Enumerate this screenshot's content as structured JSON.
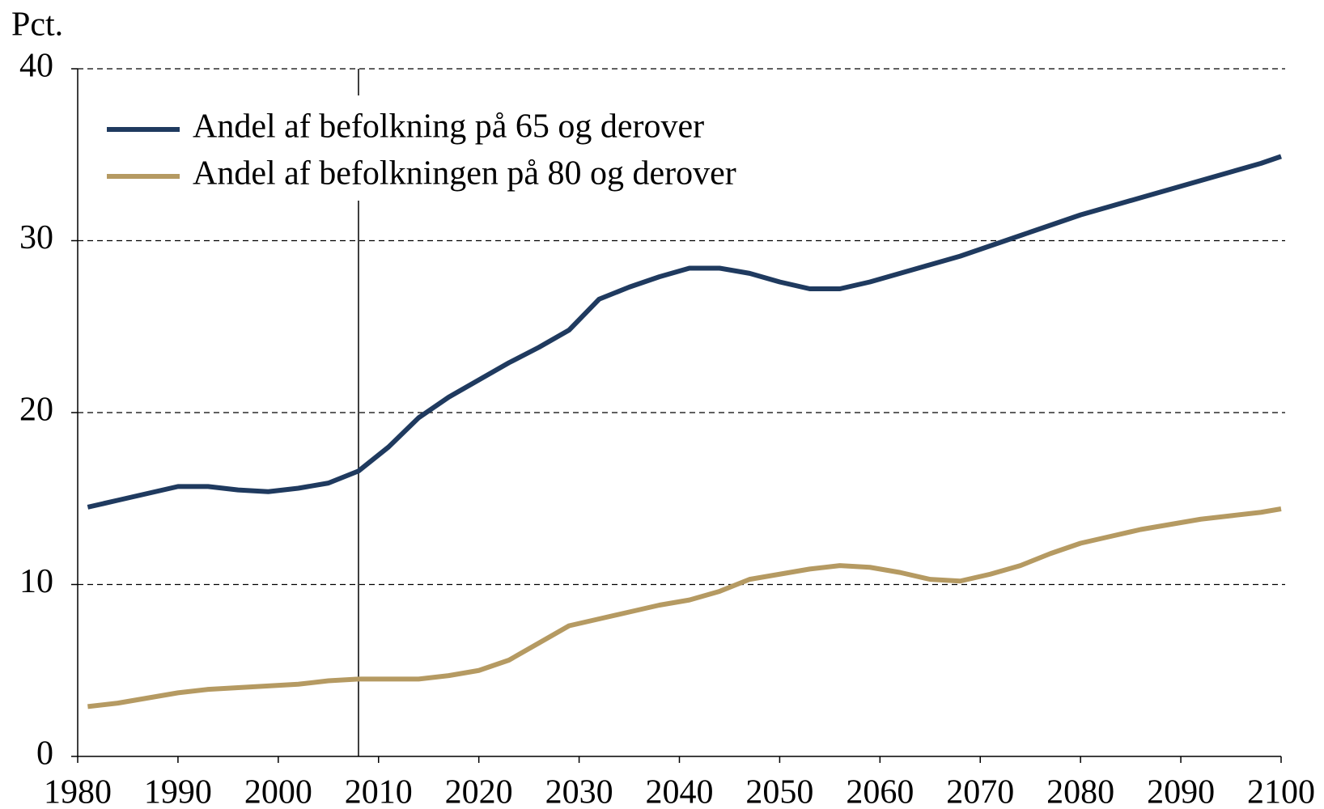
{
  "chart_data": {
    "type": "line",
    "y_label": "Pct.",
    "x": [
      1981,
      1984,
      1987,
      1990,
      1993,
      1996,
      1999,
      2002,
      2005,
      2008,
      2011,
      2014,
      2017,
      2020,
      2023,
      2026,
      2029,
      2032,
      2035,
      2038,
      2041,
      2044,
      2047,
      2050,
      2053,
      2056,
      2059,
      2062,
      2065,
      2068,
      2071,
      2074,
      2077,
      2080,
      2083,
      2086,
      2089,
      2092,
      2095,
      2098,
      2100
    ],
    "series": [
      {
        "name": "Andel af befolkning på 65 og derover",
        "color": "#1f3a5f",
        "values": [
          14.5,
          14.9,
          15.3,
          15.7,
          15.7,
          15.5,
          15.4,
          15.6,
          15.9,
          16.6,
          18.0,
          19.7,
          20.9,
          21.9,
          22.9,
          23.8,
          24.8,
          26.6,
          27.3,
          27.9,
          28.4,
          28.4,
          28.1,
          27.6,
          27.2,
          27.2,
          27.6,
          28.1,
          28.6,
          29.1,
          29.7,
          30.3,
          30.9,
          31.5,
          32.0,
          32.5,
          33.0,
          33.5,
          34.0,
          34.5,
          34.9
        ]
      },
      {
        "name": "Andel af befolkningen på 80 og derover",
        "color": "#b59a62",
        "values": [
          2.9,
          3.1,
          3.4,
          3.7,
          3.9,
          4.0,
          4.1,
          4.2,
          4.4,
          4.5,
          4.5,
          4.5,
          4.7,
          5.0,
          5.6,
          6.6,
          7.6,
          8.0,
          8.4,
          8.8,
          9.1,
          9.6,
          10.3,
          10.6,
          10.9,
          11.1,
          11.0,
          10.7,
          10.3,
          10.2,
          10.6,
          11.1,
          11.8,
          12.4,
          12.8,
          13.2,
          13.5,
          13.8,
          14.0,
          14.2,
          14.4
        ]
      }
    ],
    "xlim": [
      1980,
      2100
    ],
    "xticks": [
      1980,
      1990,
      2000,
      2010,
      2020,
      2030,
      2040,
      2050,
      2060,
      2070,
      2080,
      2090,
      2100
    ],
    "ylim": [
      0,
      40
    ],
    "yticks": [
      0,
      10,
      20,
      30,
      40
    ],
    "grid": true,
    "reference_line_x": 2008,
    "legend": "upper-left"
  }
}
